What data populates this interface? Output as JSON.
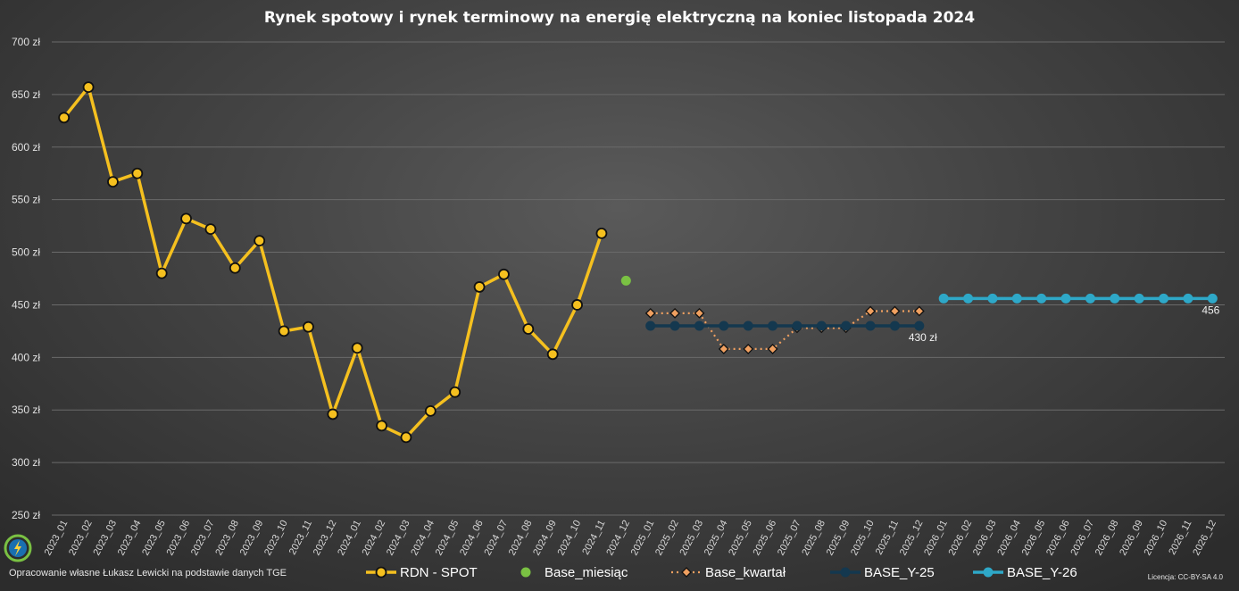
{
  "footer": {
    "credit": "Opracowanie własne Łukasz Lewicki na podstawie danych TGE",
    "license": "Licencja: CC-BY-SA 4.0"
  },
  "chart_data": {
    "type": "line",
    "title": "Rynek spotowy i rynek terminowy na energię elektryczną na koniec listopada 2024",
    "xlabel": "",
    "ylabel": "",
    "ylim": [
      250,
      700
    ],
    "ytick_step": 50,
    "ytick_suffix": " zł",
    "grid": true,
    "legend_position": "bottom",
    "categories": [
      "2023_01",
      "2023_02",
      "2023_03",
      "2023_04",
      "2023_05",
      "2023_06",
      "2023_07",
      "2023_08",
      "2023_09",
      "2023_10",
      "2023_11",
      "2023_12",
      "2024_01",
      "2024_02",
      "2024_03",
      "2024_04",
      "2024_05",
      "2024_06",
      "2024_07",
      "2024_08",
      "2024_09",
      "2024_10",
      "2024_11",
      "2024_12",
      "2025_01",
      "2025_02",
      "2025_03",
      "2025_04",
      "2025_05",
      "2025_06",
      "2025_07",
      "2025_08",
      "2025_09",
      "2025_10",
      "2025_11",
      "2025_12",
      "2026_01",
      "2026_02",
      "2026_03",
      "2026_04",
      "2026_05",
      "2026_06",
      "2026_07",
      "2026_08",
      "2026_09",
      "2026_10",
      "2026_11",
      "2026_12"
    ],
    "series": [
      {
        "name": "RDN - SPOT",
        "color": "#f5c01f",
        "marker": "circle",
        "line": "solid",
        "values": [
          628,
          657,
          567,
          575,
          480,
          532,
          522,
          485,
          511,
          425,
          429,
          346,
          409,
          335,
          324,
          349,
          367,
          467,
          479,
          427,
          403,
          450,
          518,
          null,
          null,
          null,
          null,
          null,
          null,
          null,
          null,
          null,
          null,
          null,
          null,
          null,
          null,
          null,
          null,
          null,
          null,
          null,
          null,
          null,
          null,
          null,
          null,
          null
        ]
      },
      {
        "name": "Base_miesiąc",
        "color": "#7ac143",
        "marker": "circle",
        "line": "none",
        "values": [
          null,
          null,
          null,
          null,
          null,
          null,
          null,
          null,
          null,
          null,
          null,
          null,
          null,
          null,
          null,
          null,
          null,
          null,
          null,
          null,
          null,
          null,
          null,
          473,
          null,
          null,
          null,
          null,
          null,
          null,
          null,
          null,
          null,
          null,
          null,
          null,
          null,
          null,
          null,
          null,
          null,
          null,
          null,
          null,
          null,
          null,
          null,
          null
        ]
      },
      {
        "name": "Base_kwartał",
        "color": "#f0a060",
        "marker": "diamond",
        "line": "dotted",
        "values": [
          null,
          null,
          null,
          null,
          null,
          null,
          null,
          null,
          null,
          null,
          null,
          null,
          null,
          null,
          null,
          null,
          null,
          null,
          null,
          null,
          null,
          null,
          null,
          null,
          442,
          442,
          442,
          408,
          408,
          408,
          428,
          428,
          428,
          444,
          444,
          444,
          null,
          null,
          null,
          null,
          null,
          null,
          null,
          null,
          null,
          null,
          null,
          null
        ]
      },
      {
        "name": "BASE_Y-25",
        "color": "#14384f",
        "marker": "circle",
        "line": "solid",
        "values": [
          null,
          null,
          null,
          null,
          null,
          null,
          null,
          null,
          null,
          null,
          null,
          null,
          null,
          null,
          null,
          null,
          null,
          null,
          null,
          null,
          null,
          null,
          null,
          null,
          430,
          430,
          430,
          430,
          430,
          430,
          430,
          430,
          430,
          430,
          430,
          430,
          null,
          null,
          null,
          null,
          null,
          null,
          null,
          null,
          null,
          null,
          null,
          null
        ]
      },
      {
        "name": "BASE_Y-26",
        "color": "#2ea8c8",
        "marker": "circle",
        "line": "solid",
        "values": [
          null,
          null,
          null,
          null,
          null,
          null,
          null,
          null,
          null,
          null,
          null,
          null,
          null,
          null,
          null,
          null,
          null,
          null,
          null,
          null,
          null,
          null,
          null,
          null,
          null,
          null,
          null,
          null,
          null,
          null,
          null,
          null,
          null,
          null,
          null,
          null,
          456,
          456,
          456,
          456,
          456,
          456,
          456,
          456,
          456,
          456,
          456,
          456
        ]
      }
    ],
    "annotations": [
      {
        "series": "BASE_Y-25",
        "index": 35,
        "text": "430 zł"
      },
      {
        "series": "BASE_Y-26",
        "index": 47,
        "text": "456"
      }
    ]
  }
}
